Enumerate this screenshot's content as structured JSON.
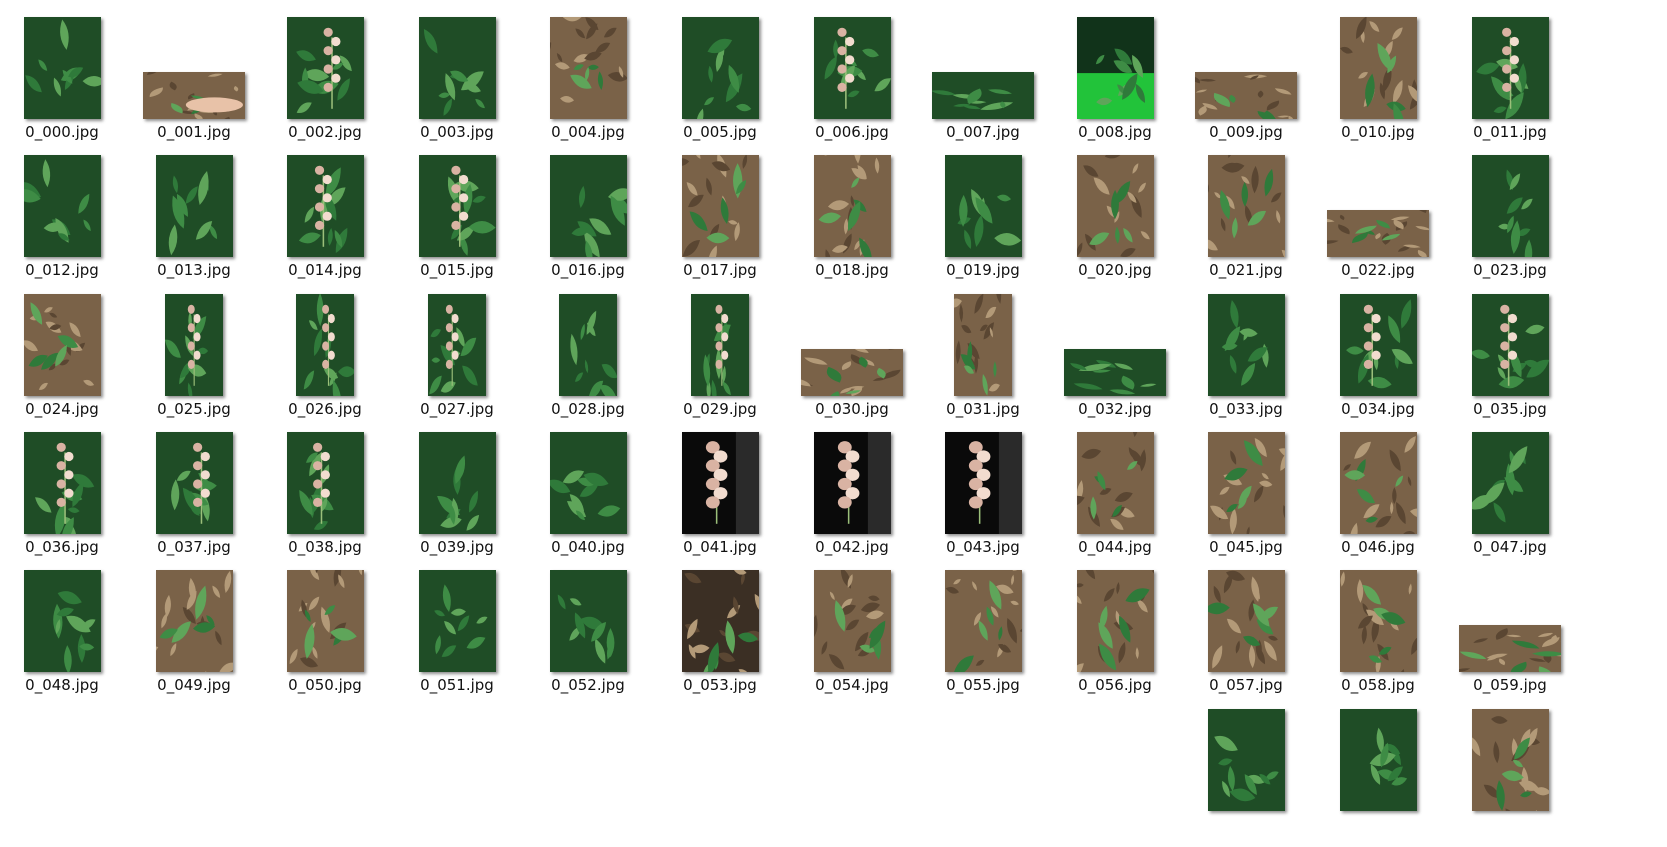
{
  "files": [
    {
      "name": "0_000.jpg",
      "orientation": "portrait",
      "scene": "leaves"
    },
    {
      "name": "0_001.jpg",
      "orientation": "landscape",
      "scene": "hand"
    },
    {
      "name": "0_002.jpg",
      "orientation": "portrait",
      "scene": "flower"
    },
    {
      "name": "0_003.jpg",
      "orientation": "portrait",
      "scene": "leaves"
    },
    {
      "name": "0_004.jpg",
      "orientation": "portrait",
      "scene": "litter"
    },
    {
      "name": "0_005.jpg",
      "orientation": "portrait",
      "scene": "leaves"
    },
    {
      "name": "0_006.jpg",
      "orientation": "portrait",
      "scene": "flower"
    },
    {
      "name": "0_007.jpg",
      "orientation": "landscape",
      "scene": "leaves"
    },
    {
      "name": "0_008.jpg",
      "orientation": "portrait",
      "scene": "bright"
    },
    {
      "name": "0_009.jpg",
      "orientation": "landscape",
      "scene": "litter"
    },
    {
      "name": "0_010.jpg",
      "orientation": "portrait",
      "scene": "litter"
    },
    {
      "name": "0_011.jpg",
      "orientation": "portrait",
      "scene": "flower"
    },
    {
      "name": "0_012.jpg",
      "orientation": "portrait",
      "scene": "leaves"
    },
    {
      "name": "0_013.jpg",
      "orientation": "portrait",
      "scene": "leaves"
    },
    {
      "name": "0_014.jpg",
      "orientation": "portrait",
      "scene": "flower"
    },
    {
      "name": "0_015.jpg",
      "orientation": "portrait",
      "scene": "flower"
    },
    {
      "name": "0_016.jpg",
      "orientation": "portrait",
      "scene": "leaves"
    },
    {
      "name": "0_017.jpg",
      "orientation": "portrait",
      "scene": "litter"
    },
    {
      "name": "0_018.jpg",
      "orientation": "portrait",
      "scene": "litter"
    },
    {
      "name": "0_019.jpg",
      "orientation": "portrait",
      "scene": "leaves"
    },
    {
      "name": "0_020.jpg",
      "orientation": "portrait",
      "scene": "litter"
    },
    {
      "name": "0_021.jpg",
      "orientation": "portrait",
      "scene": "litter"
    },
    {
      "name": "0_022.jpg",
      "orientation": "landscape",
      "scene": "litter"
    },
    {
      "name": "0_023.jpg",
      "orientation": "portrait",
      "scene": "leaves"
    },
    {
      "name": "0_024.jpg",
      "orientation": "portrait",
      "scene": "litter"
    },
    {
      "name": "0_025.jpg",
      "orientation": "narrow",
      "scene": "flower"
    },
    {
      "name": "0_026.jpg",
      "orientation": "narrow",
      "scene": "flower"
    },
    {
      "name": "0_027.jpg",
      "orientation": "narrow",
      "scene": "flower"
    },
    {
      "name": "0_028.jpg",
      "orientation": "narrow",
      "scene": "leaves"
    },
    {
      "name": "0_029.jpg",
      "orientation": "narrow",
      "scene": "flower"
    },
    {
      "name": "0_030.jpg",
      "orientation": "landscape",
      "scene": "litter"
    },
    {
      "name": "0_031.jpg",
      "orientation": "narrow",
      "scene": "litter"
    },
    {
      "name": "0_032.jpg",
      "orientation": "landscape",
      "scene": "leaves"
    },
    {
      "name": "0_033.jpg",
      "orientation": "portrait",
      "scene": "leaves"
    },
    {
      "name": "0_034.jpg",
      "orientation": "portrait",
      "scene": "flower"
    },
    {
      "name": "0_035.jpg",
      "orientation": "portrait",
      "scene": "flower"
    },
    {
      "name": "0_036.jpg",
      "orientation": "portrait",
      "scene": "flower"
    },
    {
      "name": "0_037.jpg",
      "orientation": "portrait",
      "scene": "flower"
    },
    {
      "name": "0_038.jpg",
      "orientation": "portrait",
      "scene": "flower"
    },
    {
      "name": "0_039.jpg",
      "orientation": "portrait",
      "scene": "leaves"
    },
    {
      "name": "0_040.jpg",
      "orientation": "portrait",
      "scene": "leaves"
    },
    {
      "name": "0_041.jpg",
      "orientation": "portrait",
      "scene": "dark"
    },
    {
      "name": "0_042.jpg",
      "orientation": "portrait",
      "scene": "dark"
    },
    {
      "name": "0_043.jpg",
      "orientation": "portrait",
      "scene": "dark"
    },
    {
      "name": "0_044.jpg",
      "orientation": "portrait",
      "scene": "litter"
    },
    {
      "name": "0_045.jpg",
      "orientation": "portrait",
      "scene": "litter"
    },
    {
      "name": "0_046.jpg",
      "orientation": "portrait",
      "scene": "litter"
    },
    {
      "name": "0_047.jpg",
      "orientation": "portrait",
      "scene": "leaves"
    },
    {
      "name": "0_048.jpg",
      "orientation": "portrait",
      "scene": "leaves"
    },
    {
      "name": "0_049.jpg",
      "orientation": "portrait",
      "scene": "litter"
    },
    {
      "name": "0_050.jpg",
      "orientation": "portrait",
      "scene": "litter"
    },
    {
      "name": "0_051.jpg",
      "orientation": "portrait",
      "scene": "leaves"
    },
    {
      "name": "0_052.jpg",
      "orientation": "portrait",
      "scene": "leaves"
    },
    {
      "name": "0_053.jpg",
      "orientation": "portrait",
      "scene": "soil"
    },
    {
      "name": "0_054.jpg",
      "orientation": "portrait",
      "scene": "litter"
    },
    {
      "name": "0_055.jpg",
      "orientation": "portrait",
      "scene": "litter"
    },
    {
      "name": "0_056.jpg",
      "orientation": "portrait",
      "scene": "litter"
    },
    {
      "name": "0_057.jpg",
      "orientation": "portrait",
      "scene": "litter"
    },
    {
      "name": "0_058.jpg",
      "orientation": "portrait",
      "scene": "litter"
    },
    {
      "name": "0_059.jpg",
      "orientation": "landscape",
      "scene": "litter"
    }
  ],
  "partial_row": [
    {
      "scene": "leaves"
    },
    {
      "scene": "leaves"
    },
    {
      "scene": "litter"
    }
  ],
  "palette": {
    "leaf_dark": "#1f4d26",
    "leaf": "#2f7a3a",
    "leaf_light": "#5fa55a",
    "litter": "#7a6248",
    "litter_light": "#b39a78",
    "soil": "#3b2f24",
    "flower": "#f2dccf",
    "flower_shade": "#d9b3a3",
    "night": "#0a0a0a",
    "bright": "#22c33a"
  }
}
